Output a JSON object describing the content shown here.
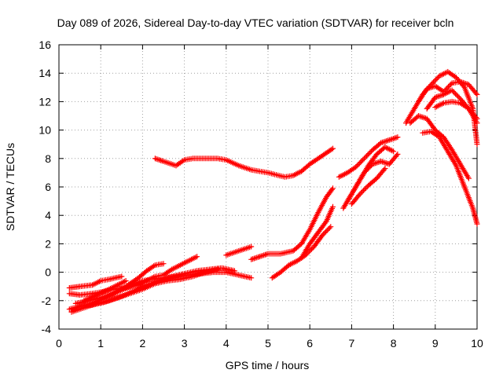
{
  "chart_data": {
    "type": "scatter",
    "title": "Day 089 of 2026, Sidereal Day-to-day VTEC variation (SDTVAR) for receiver bcln",
    "xlabel": "GPS time / hours",
    "ylabel": "SDTVAR / TECUs",
    "xlim": [
      0,
      10
    ],
    "ylim": [
      -4,
      16
    ],
    "xticks": [
      "0",
      "1",
      "2",
      "3",
      "4",
      "5",
      "6",
      "7",
      "8",
      "9",
      "10"
    ],
    "yticks": [
      "-4",
      "-2",
      "0",
      "2",
      "4",
      "6",
      "8",
      "10",
      "12",
      "14",
      "16"
    ],
    "grid": true,
    "marker": "+",
    "color": "#ff0000",
    "series": [
      {
        "name": "s1",
        "x": [
          2.3,
          2.5,
          2.8,
          3.0,
          3.2,
          3.5,
          3.8,
          4.0,
          4.3,
          4.6,
          5.0,
          5.4,
          5.6,
          5.8,
          6.0,
          6.3,
          6.55
        ],
        "y": [
          8.0,
          7.8,
          7.5,
          7.9,
          8.0,
          8.0,
          8.0,
          7.9,
          7.5,
          7.2,
          7.0,
          6.7,
          6.8,
          7.1,
          7.6,
          8.2,
          8.7
        ]
      },
      {
        "name": "s2",
        "x": [
          0.25,
          0.5,
          0.8,
          1.0,
          1.2,
          1.5
        ],
        "y": [
          -1.1,
          -1.0,
          -0.9,
          -0.6,
          -0.5,
          -0.3
        ]
      },
      {
        "name": "s3",
        "x": [
          0.25,
          0.5,
          0.8,
          1.0,
          1.3,
          1.6,
          1.9,
          2.1,
          2.3,
          2.5,
          2.7,
          2.9,
          3.1,
          3.3
        ],
        "y": [
          -1.5,
          -1.6,
          -1.5,
          -1.4,
          -1.2,
          -1.1,
          -0.9,
          -0.6,
          -0.3,
          -0.2,
          0.2,
          0.5,
          0.8,
          1.1
        ]
      },
      {
        "name": "s4",
        "x": [
          0.25,
          0.5,
          0.8,
          1.1,
          1.4,
          1.7,
          2.0,
          2.2,
          2.5,
          2.8,
          3.1,
          3.4,
          3.7,
          4.0,
          4.3,
          4.6
        ],
        "y": [
          -2.6,
          -2.4,
          -2.2,
          -1.8,
          -1.4,
          -1.0,
          -0.6,
          -0.5,
          -0.4,
          -0.3,
          -0.2,
          -0.1,
          0.0,
          0.0,
          -0.2,
          -0.4
        ]
      },
      {
        "name": "s5",
        "x": [
          0.3,
          0.6,
          0.9,
          1.2,
          1.5,
          1.8,
          2.1,
          2.4,
          2.7,
          3.0,
          3.3,
          3.6,
          3.9,
          4.2
        ],
        "y": [
          -2.8,
          -2.5,
          -2.2,
          -2.0,
          -1.7,
          -1.3,
          -0.9,
          -0.6,
          -0.3,
          -0.1,
          0.1,
          0.2,
          0.3,
          0.1
        ]
      },
      {
        "name": "s6",
        "x": [
          0.4,
          0.7,
          1.0,
          1.3,
          1.6,
          1.9,
          2.1,
          2.3,
          2.5
        ],
        "y": [
          -2.2,
          -2.0,
          -1.8,
          -1.5,
          -1.0,
          -0.4,
          0.1,
          0.5,
          0.6
        ]
      },
      {
        "name": "s7",
        "x": [
          0.5,
          0.8,
          1.1,
          1.4,
          1.7,
          2.0,
          2.3,
          2.6,
          2.9,
          3.2,
          3.5,
          3.8
        ],
        "y": [
          -2.4,
          -2.3,
          -2.1,
          -1.8,
          -1.5,
          -1.2,
          -0.8,
          -0.6,
          -0.5,
          -0.3,
          0.0,
          0.2
        ]
      },
      {
        "name": "s8",
        "x": [
          0.6,
          0.9,
          1.2,
          1.4,
          1.6
        ],
        "y": [
          -2.0,
          -1.6,
          -1.2,
          -0.9,
          -0.6
        ]
      },
      {
        "name": "s9",
        "x": [
          4.0,
          4.3,
          4.6
        ],
        "y": [
          1.2,
          1.5,
          1.8
        ]
      },
      {
        "name": "s10",
        "x": [
          5.1,
          5.3,
          5.5,
          5.7,
          5.9,
          6.1,
          6.3,
          6.5
        ],
        "y": [
          -0.4,
          0.0,
          0.5,
          0.8,
          1.2,
          1.8,
          2.6,
          3.2
        ]
      },
      {
        "name": "s11",
        "x": [
          4.6,
          4.8,
          5.0,
          5.3,
          5.6,
          5.8,
          6.0,
          6.2,
          6.4,
          6.55
        ],
        "y": [
          0.9,
          1.1,
          1.3,
          1.3,
          1.5,
          2.0,
          3.0,
          4.2,
          5.3,
          5.9
        ]
      },
      {
        "name": "s12",
        "x": [
          5.8,
          6.0,
          6.2,
          6.4,
          6.55
        ],
        "y": [
          1.0,
          2.0,
          2.8,
          3.6,
          4.6
        ]
      },
      {
        "name": "s13",
        "x": [
          6.7,
          6.9,
          7.1,
          7.3,
          7.5,
          7.7,
          7.9,
          8.1
        ],
        "y": [
          6.7,
          7.0,
          7.4,
          8.0,
          8.6,
          9.1,
          9.3,
          9.5
        ]
      },
      {
        "name": "s14",
        "x": [
          6.8,
          7.0,
          7.2,
          7.4,
          7.6,
          7.8,
          8.0
        ],
        "y": [
          4.5,
          5.5,
          6.5,
          7.5,
          8.3,
          8.8,
          8.5
        ]
      },
      {
        "name": "s15",
        "x": [
          6.9,
          7.1,
          7.3,
          7.5,
          7.7,
          7.9,
          8.1
        ],
        "y": [
          5.0,
          6.0,
          7.0,
          7.6,
          7.8,
          7.6,
          8.3
        ]
      },
      {
        "name": "s16",
        "x": [
          7.0,
          7.2,
          7.4,
          7.6,
          7.8
        ],
        "y": [
          4.8,
          5.5,
          6.1,
          6.6,
          7.3
        ]
      },
      {
        "name": "s17",
        "x": [
          8.3,
          8.5,
          8.7,
          8.9,
          9.1,
          9.3,
          9.5,
          9.7,
          9.9,
          10.0
        ],
        "y": [
          10.5,
          11.5,
          12.5,
          13.2,
          13.8,
          14.1,
          13.7,
          13.0,
          11.5,
          9.0
        ]
      },
      {
        "name": "s18",
        "x": [
          8.6,
          8.8,
          9.0,
          9.2,
          9.4,
          9.6,
          9.8,
          10.0
        ],
        "y": [
          12.0,
          12.9,
          13.1,
          12.7,
          13.3,
          13.4,
          13.2,
          12.5
        ]
      },
      {
        "name": "s19",
        "x": [
          8.8,
          9.0,
          9.2,
          9.4,
          9.6,
          9.8,
          10.0
        ],
        "y": [
          11.5,
          12.3,
          12.5,
          12.8,
          12.2,
          11.5,
          10.5
        ]
      },
      {
        "name": "s20",
        "x": [
          8.4,
          8.6,
          8.8,
          9.0,
          9.2,
          9.4,
          9.6,
          9.8
        ],
        "y": [
          10.5,
          11.0,
          10.8,
          10.0,
          9.5,
          8.6,
          7.6,
          6.6
        ]
      },
      {
        "name": "s21",
        "x": [
          8.7,
          8.9,
          9.1,
          9.3,
          9.5,
          9.7,
          9.9,
          10.0
        ],
        "y": [
          9.8,
          9.9,
          9.5,
          8.5,
          7.5,
          6.0,
          4.5,
          3.4
        ]
      },
      {
        "name": "s22",
        "x": [
          9.0,
          9.2,
          9.4,
          9.6,
          9.8,
          10.0
        ],
        "y": [
          11.6,
          11.9,
          12.0,
          11.9,
          11.5,
          10.8
        ]
      }
    ]
  }
}
